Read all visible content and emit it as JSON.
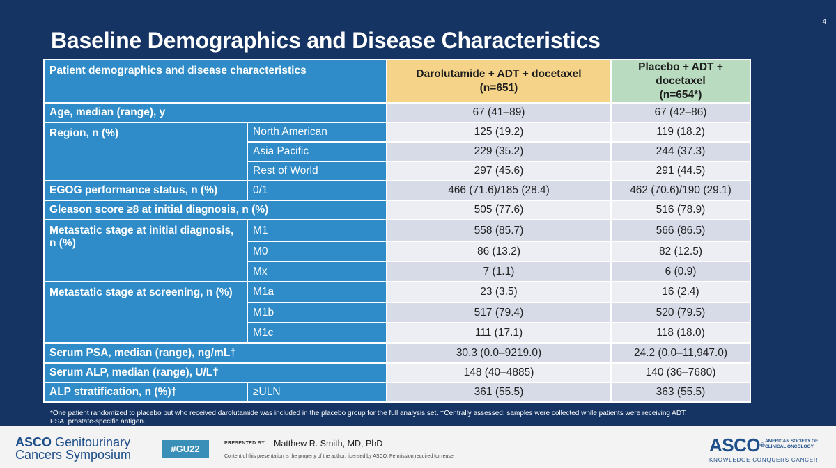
{
  "slide": {
    "number": "4",
    "title": "Baseline Demographics and Disease Characteristics"
  },
  "table": {
    "header": {
      "label": "Patient demographics and disease characteristics",
      "arm1_name": "Darolutamide + ADT + docetaxel",
      "arm1_n": "(n=651)",
      "arm2_name": "Placebo + ADT + docetaxel",
      "arm2_n": "(n=654*)"
    },
    "age": {
      "label": "Age, median (range), y",
      "v1": "67 (41–89)",
      "v2": "67 (42–86)"
    },
    "region": {
      "label": "Region, n (%)",
      "rows": [
        {
          "sub": "North American",
          "v1": "125 (19.2)",
          "v2": "119 (18.2)"
        },
        {
          "sub": "Asia Pacific",
          "v1": "229 (35.2)",
          "v2": "244 (37.3)"
        },
        {
          "sub": "Rest of World",
          "v1": "297 (45.6)",
          "v2": "291 (44.5)"
        }
      ]
    },
    "ecog": {
      "label": "EGOG performance status, n (%)",
      "sub": "0/1",
      "v1": "466 (71.6)/185 (28.4)",
      "v2": "462 (70.6)/190 (29.1)"
    },
    "gleason": {
      "label": "Gleason score ≥8 at initial diagnosis, n (%)",
      "v1": "505 (77.6)",
      "v2": "516 (78.9)"
    },
    "meta_initial": {
      "label": "Metastatic stage at initial diagnosis, n (%)",
      "rows": [
        {
          "sub": "M1",
          "v1": "558 (85.7)",
          "v2": "566 (86.5)"
        },
        {
          "sub": "M0",
          "v1": "86 (13.2)",
          "v2": "82 (12.5)"
        },
        {
          "sub": "Mx",
          "v1": "7 (1.1)",
          "v2": "6 (0.9)"
        }
      ]
    },
    "meta_screening": {
      "label": "Metastatic stage at screening, n (%)",
      "rows": [
        {
          "sub": "M1a",
          "v1": "23 (3.5)",
          "v2": "16 (2.4)"
        },
        {
          "sub": "M1b",
          "v1": "517 (79.4)",
          "v2": "520 (79.5)"
        },
        {
          "sub": "M1c",
          "v1": "111 (17.1)",
          "v2": "118 (18.0)"
        }
      ]
    },
    "psa": {
      "label": "Serum PSA, median (range), ng/mL†",
      "v1": "30.3 (0.0–9219.0)",
      "v2": "24.2 (0.0–11,947.0)"
    },
    "alp": {
      "label": "Serum ALP, median (range), U/L†",
      "v1": "148 (40–4885)",
      "v2": "140 (36–7680)"
    },
    "alp_strat": {
      "label": "ALP stratification, n (%)†",
      "sub": "≥ULN",
      "v1": "361 (55.5)",
      "v2": "363 (55.5)"
    }
  },
  "footnote": {
    "line1": "*One patient randomized to placebo but who received darolutamide was included in the placebo group for the full analysis set. †Centrally assessed; samples were collected while patients were receiving ADT.",
    "line2": "PSA, prostate-specific antigen."
  },
  "footer": {
    "logo_asco": "ASCO",
    "logo_line1_rest": " Genitourinary",
    "logo_line2": "Cancers Symposium",
    "hashtag": "#GU22",
    "presented_by": "PRESENTED BY:",
    "presenter": "Matthew R. Smith, MD, PhD",
    "disclaimer": "Content of this presentation is the property of the author, licensed by ASCO. Permission required for reuse.",
    "asco": "ASCO",
    "asco_reg": "®",
    "society_line1": "AMERICAN SOCIETY OF",
    "society_line2": "CLINICAL ONCOLOGY",
    "tagline": "KNOWLEDGE CONQUERS CANCER"
  }
}
